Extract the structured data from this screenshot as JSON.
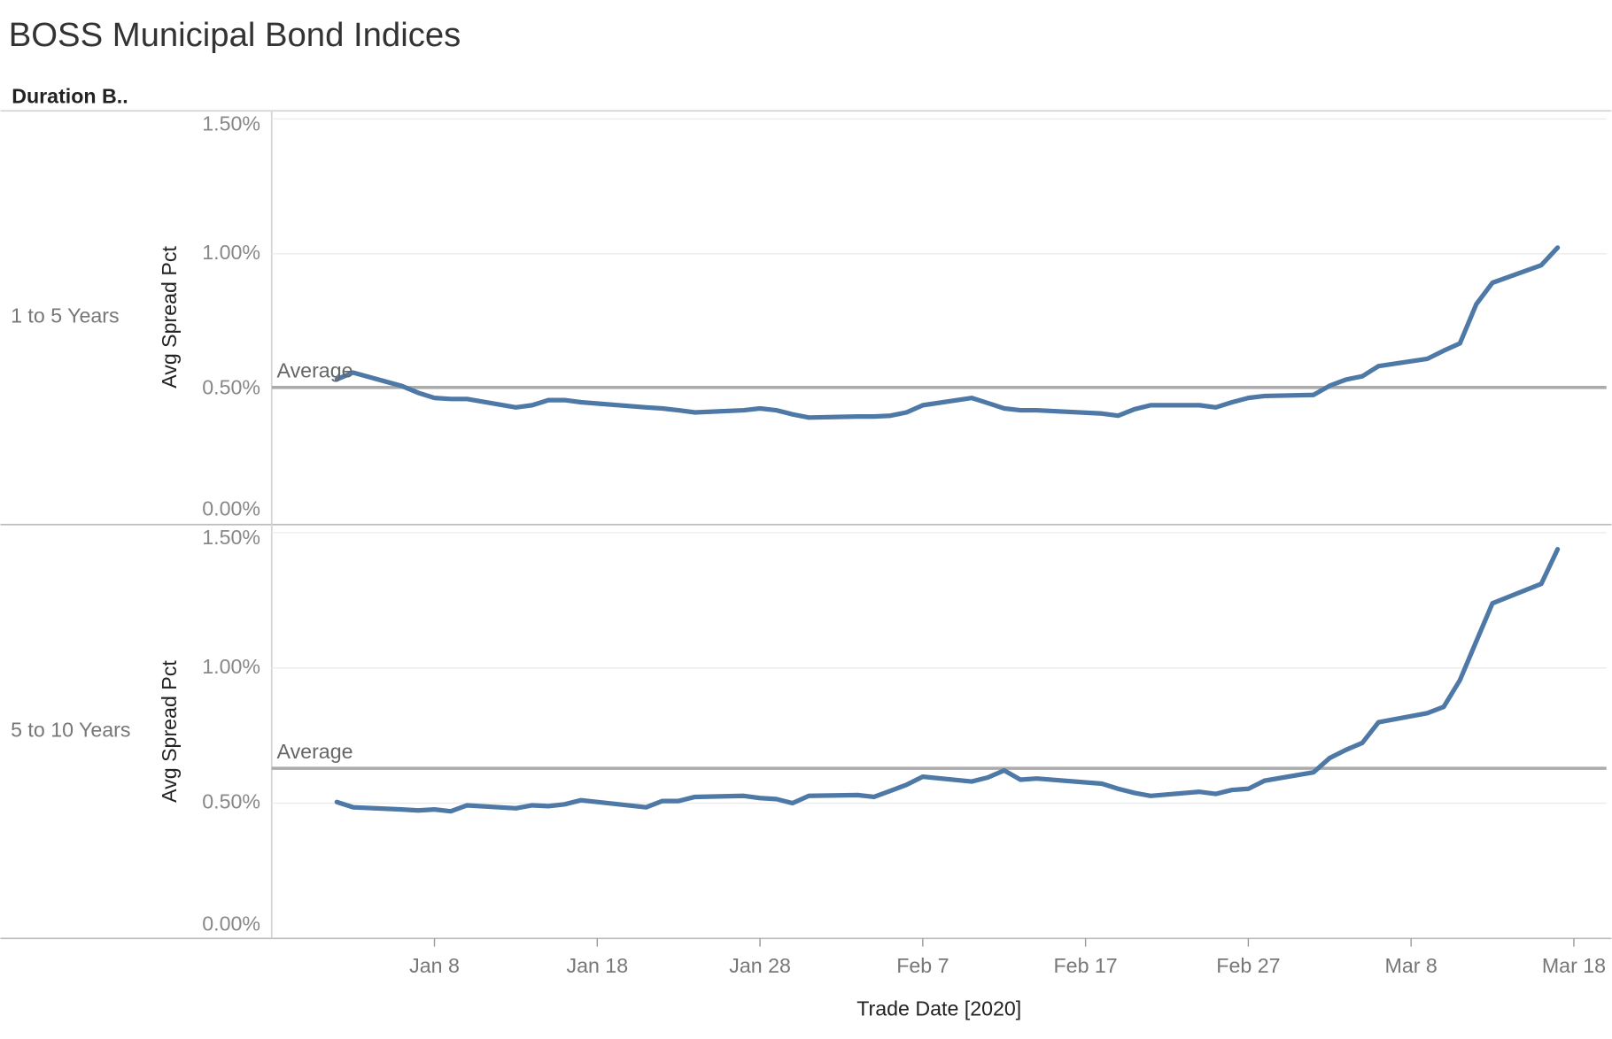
{
  "title": "BOSS Municipal Bond Indices",
  "row_header": "Duration B..",
  "chart_data": [
    {
      "type": "line",
      "row_label": "1 to 5 Years",
      "y_label": "Avg Spread Pct",
      "x": [
        "2020-01-02",
        "2020-01-03",
        "2020-01-06",
        "2020-01-07",
        "2020-01-08",
        "2020-01-09",
        "2020-01-10",
        "2020-01-13",
        "2020-01-14",
        "2020-01-15",
        "2020-01-16",
        "2020-01-17",
        "2020-01-21",
        "2020-01-22",
        "2020-01-23",
        "2020-01-24",
        "2020-01-27",
        "2020-01-28",
        "2020-01-29",
        "2020-01-30",
        "2020-01-31",
        "2020-02-03",
        "2020-02-04",
        "2020-02-05",
        "2020-02-06",
        "2020-02-07",
        "2020-02-10",
        "2020-02-11",
        "2020-02-12",
        "2020-02-13",
        "2020-02-14",
        "2020-02-18",
        "2020-02-19",
        "2020-02-20",
        "2020-02-21",
        "2020-02-24",
        "2020-02-25",
        "2020-02-26",
        "2020-02-27",
        "2020-02-28",
        "2020-03-02",
        "2020-03-03",
        "2020-03-04",
        "2020-03-05",
        "2020-03-06",
        "2020-03-09",
        "2020-03-10",
        "2020-03-11",
        "2020-03-12",
        "2020-03-13",
        "2020-03-16",
        "2020-03-17"
      ],
      "values": [
        0.535,
        0.56,
        0.51,
        0.485,
        0.466,
        0.462,
        0.462,
        0.431,
        0.439,
        0.458,
        0.458,
        0.45,
        0.431,
        0.427,
        0.42,
        0.412,
        0.42,
        0.427,
        0.42,
        0.405,
        0.393,
        0.397,
        0.397,
        0.4,
        0.412,
        0.439,
        0.466,
        0.447,
        0.427,
        0.42,
        0.42,
        0.408,
        0.4,
        0.424,
        0.439,
        0.439,
        0.431,
        0.45,
        0.466,
        0.473,
        0.477,
        0.511,
        0.534,
        0.546,
        0.584,
        0.611,
        0.641,
        0.668,
        0.813,
        0.893,
        0.958,
        1.023
      ],
      "color": "#4e79a7",
      "reference_line": {
        "label": "Average",
        "value": 0.505
      },
      "xlim": [
        "2019-12-29",
        "2020-03-20"
      ],
      "ylim": [
        0,
        1.53
      ],
      "yticks": [
        {
          "value": 0,
          "label": "0.00%"
        },
        {
          "value": 0.5,
          "label": "0.50%"
        },
        {
          "value": 1.0,
          "label": "1.00%"
        },
        {
          "value": 1.5,
          "label": "1.50%"
        }
      ],
      "grid": true
    },
    {
      "type": "line",
      "row_label": "5 to 10 Years",
      "y_label": "Avg Spread Pct",
      "x_label": "Trade Date [2020]",
      "x": [
        "2020-01-02",
        "2020-01-03",
        "2020-01-06",
        "2020-01-07",
        "2020-01-08",
        "2020-01-09",
        "2020-01-10",
        "2020-01-13",
        "2020-01-14",
        "2020-01-15",
        "2020-01-16",
        "2020-01-17",
        "2020-01-21",
        "2020-01-22",
        "2020-01-23",
        "2020-01-24",
        "2020-01-27",
        "2020-01-28",
        "2020-01-29",
        "2020-01-30",
        "2020-01-31",
        "2020-02-03",
        "2020-02-04",
        "2020-02-05",
        "2020-02-06",
        "2020-02-07",
        "2020-02-10",
        "2020-02-11",
        "2020-02-12",
        "2020-02-13",
        "2020-02-14",
        "2020-02-18",
        "2020-02-19",
        "2020-02-20",
        "2020-02-21",
        "2020-02-24",
        "2020-02-25",
        "2020-02-26",
        "2020-02-27",
        "2020-02-28",
        "2020-03-02",
        "2020-03-03",
        "2020-03-04",
        "2020-03-05",
        "2020-03-06",
        "2020-03-09",
        "2020-03-10",
        "2020-03-11",
        "2020-03-12",
        "2020-03-13",
        "2020-03-16",
        "2020-03-17"
      ],
      "values": [
        0.504,
        0.485,
        0.477,
        0.473,
        0.477,
        0.47,
        0.492,
        0.481,
        0.492,
        0.489,
        0.496,
        0.511,
        0.485,
        0.508,
        0.508,
        0.523,
        0.527,
        0.519,
        0.515,
        0.5,
        0.527,
        0.53,
        0.523,
        0.545,
        0.568,
        0.598,
        0.58,
        0.595,
        0.621,
        0.587,
        0.591,
        0.572,
        0.553,
        0.538,
        0.527,
        0.542,
        0.534,
        0.549,
        0.553,
        0.583,
        0.614,
        0.667,
        0.697,
        0.723,
        0.799,
        0.833,
        0.856,
        0.955,
        1.098,
        1.239,
        1.311,
        1.439
      ],
      "color": "#4e79a7",
      "reference_line": {
        "label": "Average",
        "value": 0.629
      },
      "xlim": [
        "2019-12-29",
        "2020-03-20"
      ],
      "xticks": [
        {
          "value": "2020-01-08",
          "label": "Jan 8"
        },
        {
          "value": "2020-01-18",
          "label": "Jan 18"
        },
        {
          "value": "2020-01-28",
          "label": "Jan 28"
        },
        {
          "value": "2020-02-07",
          "label": "Feb 7"
        },
        {
          "value": "2020-02-17",
          "label": "Feb 17"
        },
        {
          "value": "2020-02-27",
          "label": "Feb 27"
        },
        {
          "value": "2020-03-08",
          "label": "Mar 8"
        },
        {
          "value": "2020-03-18",
          "label": "Mar 18"
        }
      ],
      "ylim": [
        0,
        1.53
      ],
      "yticks": [
        {
          "value": 0,
          "label": "0.00%"
        },
        {
          "value": 0.5,
          "label": "0.50%"
        },
        {
          "value": 1.0,
          "label": "1.00%"
        },
        {
          "value": 1.5,
          "label": "1.50%"
        }
      ],
      "grid": true
    }
  ]
}
